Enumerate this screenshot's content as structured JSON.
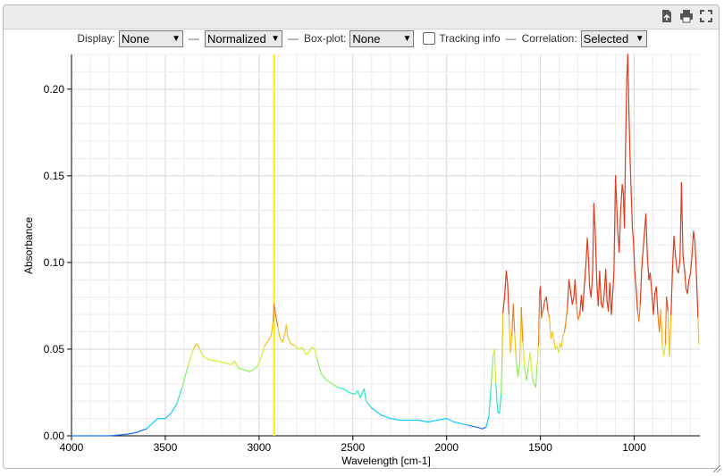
{
  "controls": {
    "display_label": "Display:",
    "display_value": "None",
    "norm_value": "Normalized",
    "boxplot_label": "Box-plot:",
    "boxplot_value": "None",
    "tracking_label": "Tracking info",
    "correlation_label": "Correlation:",
    "correlation_value": "Selected",
    "dash": "—"
  },
  "icons": [
    "export-icon",
    "print-icon",
    "fullscreen-icon"
  ],
  "chart_data": {
    "type": "line",
    "xlabel": "Wavelength [cm-1]",
    "ylabel": "Absorbance",
    "xlim": [
      4000,
      650
    ],
    "ylim": [
      0,
      0.22
    ],
    "x_ticks": [
      4000,
      3500,
      3000,
      2500,
      2000,
      1500,
      1000
    ],
    "y_ticks": [
      0.0,
      0.05,
      0.1,
      0.15,
      0.2
    ],
    "y_tick_labels": [
      "0.00",
      "0.05",
      "0.10",
      "0.15",
      "0.20"
    ],
    "grid": true,
    "highlight_line_x": 2920,
    "highlight_color": "#ffee00",
    "colormap": [
      "#1f6fff",
      "#19c8ff",
      "#2ee6c8",
      "#8cf060",
      "#d8ec30",
      "#f5c020",
      "#f08020",
      "#e03a1a"
    ],
    "series": [
      {
        "points": [
          [
            4000,
            0.0
          ],
          [
            3800,
            0.0
          ],
          [
            3700,
            0.001
          ],
          [
            3650,
            0.002
          ],
          [
            3600,
            0.004
          ],
          [
            3560,
            0.008
          ],
          [
            3540,
            0.01
          ],
          [
            3500,
            0.01
          ],
          [
            3470,
            0.013
          ],
          [
            3440,
            0.018
          ],
          [
            3410,
            0.028
          ],
          [
            3380,
            0.04
          ],
          [
            3350,
            0.05
          ],
          [
            3335,
            0.053
          ],
          [
            3320,
            0.051
          ],
          [
            3300,
            0.046
          ],
          [
            3270,
            0.044
          ],
          [
            3220,
            0.043
          ],
          [
            3180,
            0.042
          ],
          [
            3150,
            0.041
          ],
          [
            3130,
            0.043
          ],
          [
            3110,
            0.039
          ],
          [
            3080,
            0.038
          ],
          [
            3050,
            0.037
          ],
          [
            3030,
            0.038
          ],
          [
            3010,
            0.04
          ],
          [
            2990,
            0.045
          ],
          [
            2970,
            0.052
          ],
          [
            2950,
            0.055
          ],
          [
            2935,
            0.058
          ],
          [
            2925,
            0.066
          ],
          [
            2920,
            0.076
          ],
          [
            2912,
            0.07
          ],
          [
            2900,
            0.063
          ],
          [
            2890,
            0.057
          ],
          [
            2875,
            0.054
          ],
          [
            2862,
            0.059
          ],
          [
            2855,
            0.064
          ],
          [
            2848,
            0.057
          ],
          [
            2830,
            0.053
          ],
          [
            2810,
            0.052
          ],
          [
            2790,
            0.05
          ],
          [
            2770,
            0.051
          ],
          [
            2750,
            0.047
          ],
          [
            2735,
            0.048
          ],
          [
            2720,
            0.051
          ],
          [
            2705,
            0.05
          ],
          [
            2690,
            0.044
          ],
          [
            2670,
            0.036
          ],
          [
            2640,
            0.032
          ],
          [
            2610,
            0.03
          ],
          [
            2580,
            0.028
          ],
          [
            2550,
            0.027
          ],
          [
            2520,
            0.025
          ],
          [
            2490,
            0.024
          ],
          [
            2475,
            0.026
          ],
          [
            2460,
            0.022
          ],
          [
            2450,
            0.025
          ],
          [
            2440,
            0.027
          ],
          [
            2430,
            0.02
          ],
          [
            2400,
            0.016
          ],
          [
            2350,
            0.012
          ],
          [
            2300,
            0.01
          ],
          [
            2250,
            0.009
          ],
          [
            2200,
            0.009
          ],
          [
            2150,
            0.009
          ],
          [
            2100,
            0.008
          ],
          [
            2050,
            0.009
          ],
          [
            2000,
            0.01
          ],
          [
            1960,
            0.008
          ],
          [
            1920,
            0.007
          ],
          [
            1880,
            0.006
          ],
          [
            1840,
            0.005
          ],
          [
            1810,
            0.004
          ],
          [
            1790,
            0.005
          ],
          [
            1775,
            0.011
          ],
          [
            1762,
            0.03
          ],
          [
            1752,
            0.046
          ],
          [
            1745,
            0.05
          ],
          [
            1738,
            0.03
          ],
          [
            1728,
            0.014
          ],
          [
            1718,
            0.013
          ],
          [
            1710,
            0.024
          ],
          [
            1705,
            0.042
          ],
          [
            1700,
            0.071
          ],
          [
            1690,
            0.082
          ],
          [
            1682,
            0.095
          ],
          [
            1675,
            0.088
          ],
          [
            1668,
            0.07
          ],
          [
            1660,
            0.048
          ],
          [
            1652,
            0.058
          ],
          [
            1645,
            0.076
          ],
          [
            1638,
            0.06
          ],
          [
            1630,
            0.045
          ],
          [
            1620,
            0.034
          ],
          [
            1610,
            0.042
          ],
          [
            1602,
            0.074
          ],
          [
            1594,
            0.054
          ],
          [
            1585,
            0.04
          ],
          [
            1575,
            0.032
          ],
          [
            1565,
            0.04
          ],
          [
            1555,
            0.048
          ],
          [
            1545,
            0.035
          ],
          [
            1535,
            0.03
          ],
          [
            1525,
            0.028
          ],
          [
            1518,
            0.04
          ],
          [
            1510,
            0.052
          ],
          [
            1505,
            0.082
          ],
          [
            1500,
            0.086
          ],
          [
            1494,
            0.068
          ],
          [
            1485,
            0.073
          ],
          [
            1477,
            0.078
          ],
          [
            1468,
            0.08
          ],
          [
            1460,
            0.072
          ],
          [
            1452,
            0.068
          ],
          [
            1444,
            0.056
          ],
          [
            1436,
            0.06
          ],
          [
            1428,
            0.055
          ],
          [
            1420,
            0.05
          ],
          [
            1412,
            0.052
          ],
          [
            1404,
            0.048
          ],
          [
            1396,
            0.053
          ],
          [
            1388,
            0.051
          ],
          [
            1380,
            0.058
          ],
          [
            1372,
            0.06
          ],
          [
            1364,
            0.066
          ],
          [
            1356,
            0.074
          ],
          [
            1348,
            0.09
          ],
          [
            1340,
            0.084
          ],
          [
            1330,
            0.076
          ],
          [
            1322,
            0.08
          ],
          [
            1315,
            0.09
          ],
          [
            1308,
            0.076
          ],
          [
            1300,
            0.067
          ],
          [
            1290,
            0.07
          ],
          [
            1282,
            0.081
          ],
          [
            1275,
            0.072
          ],
          [
            1266,
            0.086
          ],
          [
            1258,
            0.098
          ],
          [
            1250,
            0.114
          ],
          [
            1244,
            0.103
          ],
          [
            1238,
            0.086
          ],
          [
            1230,
            0.08
          ],
          [
            1222,
            0.094
          ],
          [
            1215,
            0.134
          ],
          [
            1208,
            0.118
          ],
          [
            1200,
            0.09
          ],
          [
            1192,
            0.075
          ],
          [
            1184,
            0.095
          ],
          [
            1176,
            0.076
          ],
          [
            1168,
            0.074
          ],
          [
            1160,
            0.082
          ],
          [
            1152,
            0.096
          ],
          [
            1145,
            0.078
          ],
          [
            1138,
            0.072
          ],
          [
            1130,
            0.088
          ],
          [
            1122,
            0.07
          ],
          [
            1115,
            0.081
          ],
          [
            1108,
            0.095
          ],
          [
            1100,
            0.15
          ],
          [
            1094,
            0.135
          ],
          [
            1088,
            0.118
          ],
          [
            1080,
            0.106
          ],
          [
            1072,
            0.13
          ],
          [
            1064,
            0.145
          ],
          [
            1058,
            0.14
          ],
          [
            1052,
            0.12
          ],
          [
            1046,
            0.168
          ],
          [
            1040,
            0.205
          ],
          [
            1034,
            0.22
          ],
          [
            1028,
            0.186
          ],
          [
            1022,
            0.16
          ],
          [
            1016,
            0.14
          ],
          [
            1010,
            0.12
          ],
          [
            1004,
            0.112
          ],
          [
            998,
            0.096
          ],
          [
            990,
            0.085
          ],
          [
            982,
            0.072
          ],
          [
            975,
            0.066
          ],
          [
            968,
            0.076
          ],
          [
            960,
            0.096
          ],
          [
            952,
            0.108
          ],
          [
            945,
            0.118
          ],
          [
            938,
            0.128
          ],
          [
            930,
            0.104
          ],
          [
            922,
            0.09
          ],
          [
            915,
            0.094
          ],
          [
            906,
            0.082
          ],
          [
            898,
            0.07
          ],
          [
            890,
            0.082
          ],
          [
            882,
            0.086
          ],
          [
            874,
            0.07
          ],
          [
            866,
            0.06
          ],
          [
            858,
            0.073
          ],
          [
            850,
            0.052
          ],
          [
            842,
            0.046
          ],
          [
            834,
            0.053
          ],
          [
            828,
            0.08
          ],
          [
            820,
            0.072
          ],
          [
            812,
            0.046
          ],
          [
            804,
            0.07
          ],
          [
            796,
            0.096
          ],
          [
            788,
            0.115
          ],
          [
            780,
            0.104
          ],
          [
            772,
            0.096
          ],
          [
            764,
            0.094
          ],
          [
            756,
            0.102
          ],
          [
            748,
            0.146
          ],
          [
            740,
            0.104
          ],
          [
            732,
            0.096
          ],
          [
            724,
            0.085
          ],
          [
            716,
            0.082
          ],
          [
            708,
            0.09
          ],
          [
            700,
            0.094
          ],
          [
            692,
            0.104
          ],
          [
            684,
            0.118
          ],
          [
            676,
            0.112
          ],
          [
            668,
            0.092
          ],
          [
            660,
            0.068
          ],
          [
            655,
            0.053
          ]
        ]
      }
    ]
  }
}
